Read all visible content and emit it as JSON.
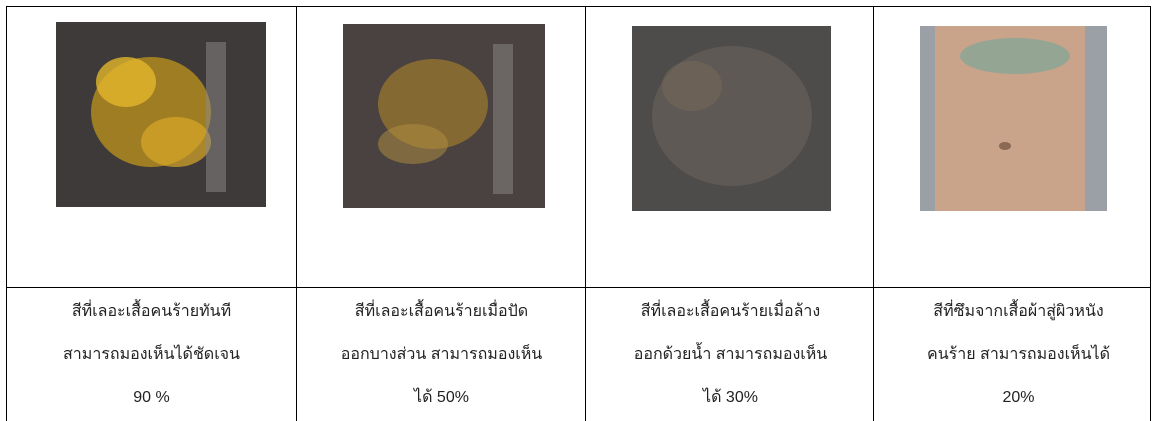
{
  "table": {
    "cells": [
      {
        "lines": [
          "สีที่เลอะเสื้อคนร้ายทันที",
          "สามารถมองเห็นได้ชัดเจน",
          "90 %"
        ]
      },
      {
        "lines": [
          "สีที่เลอะเสื้อคนร้ายเมื่อปัด",
          "ออกบางส่วน สามารถมองเห็น",
          "ได้ 50%"
        ]
      },
      {
        "lines": [
          "สีที่เลอะเสื้อคนร้ายเมื่อล้าง",
          "ออกด้วยน้ำ สามารถมองเห็น",
          "ได้ 30%"
        ]
      },
      {
        "lines": [
          "สีที่ซึมจากเสื้อผ้าสู่ผิวหนัง",
          "คนร้าย สามารถมองเห็นได้",
          "20%"
        ]
      }
    ]
  }
}
